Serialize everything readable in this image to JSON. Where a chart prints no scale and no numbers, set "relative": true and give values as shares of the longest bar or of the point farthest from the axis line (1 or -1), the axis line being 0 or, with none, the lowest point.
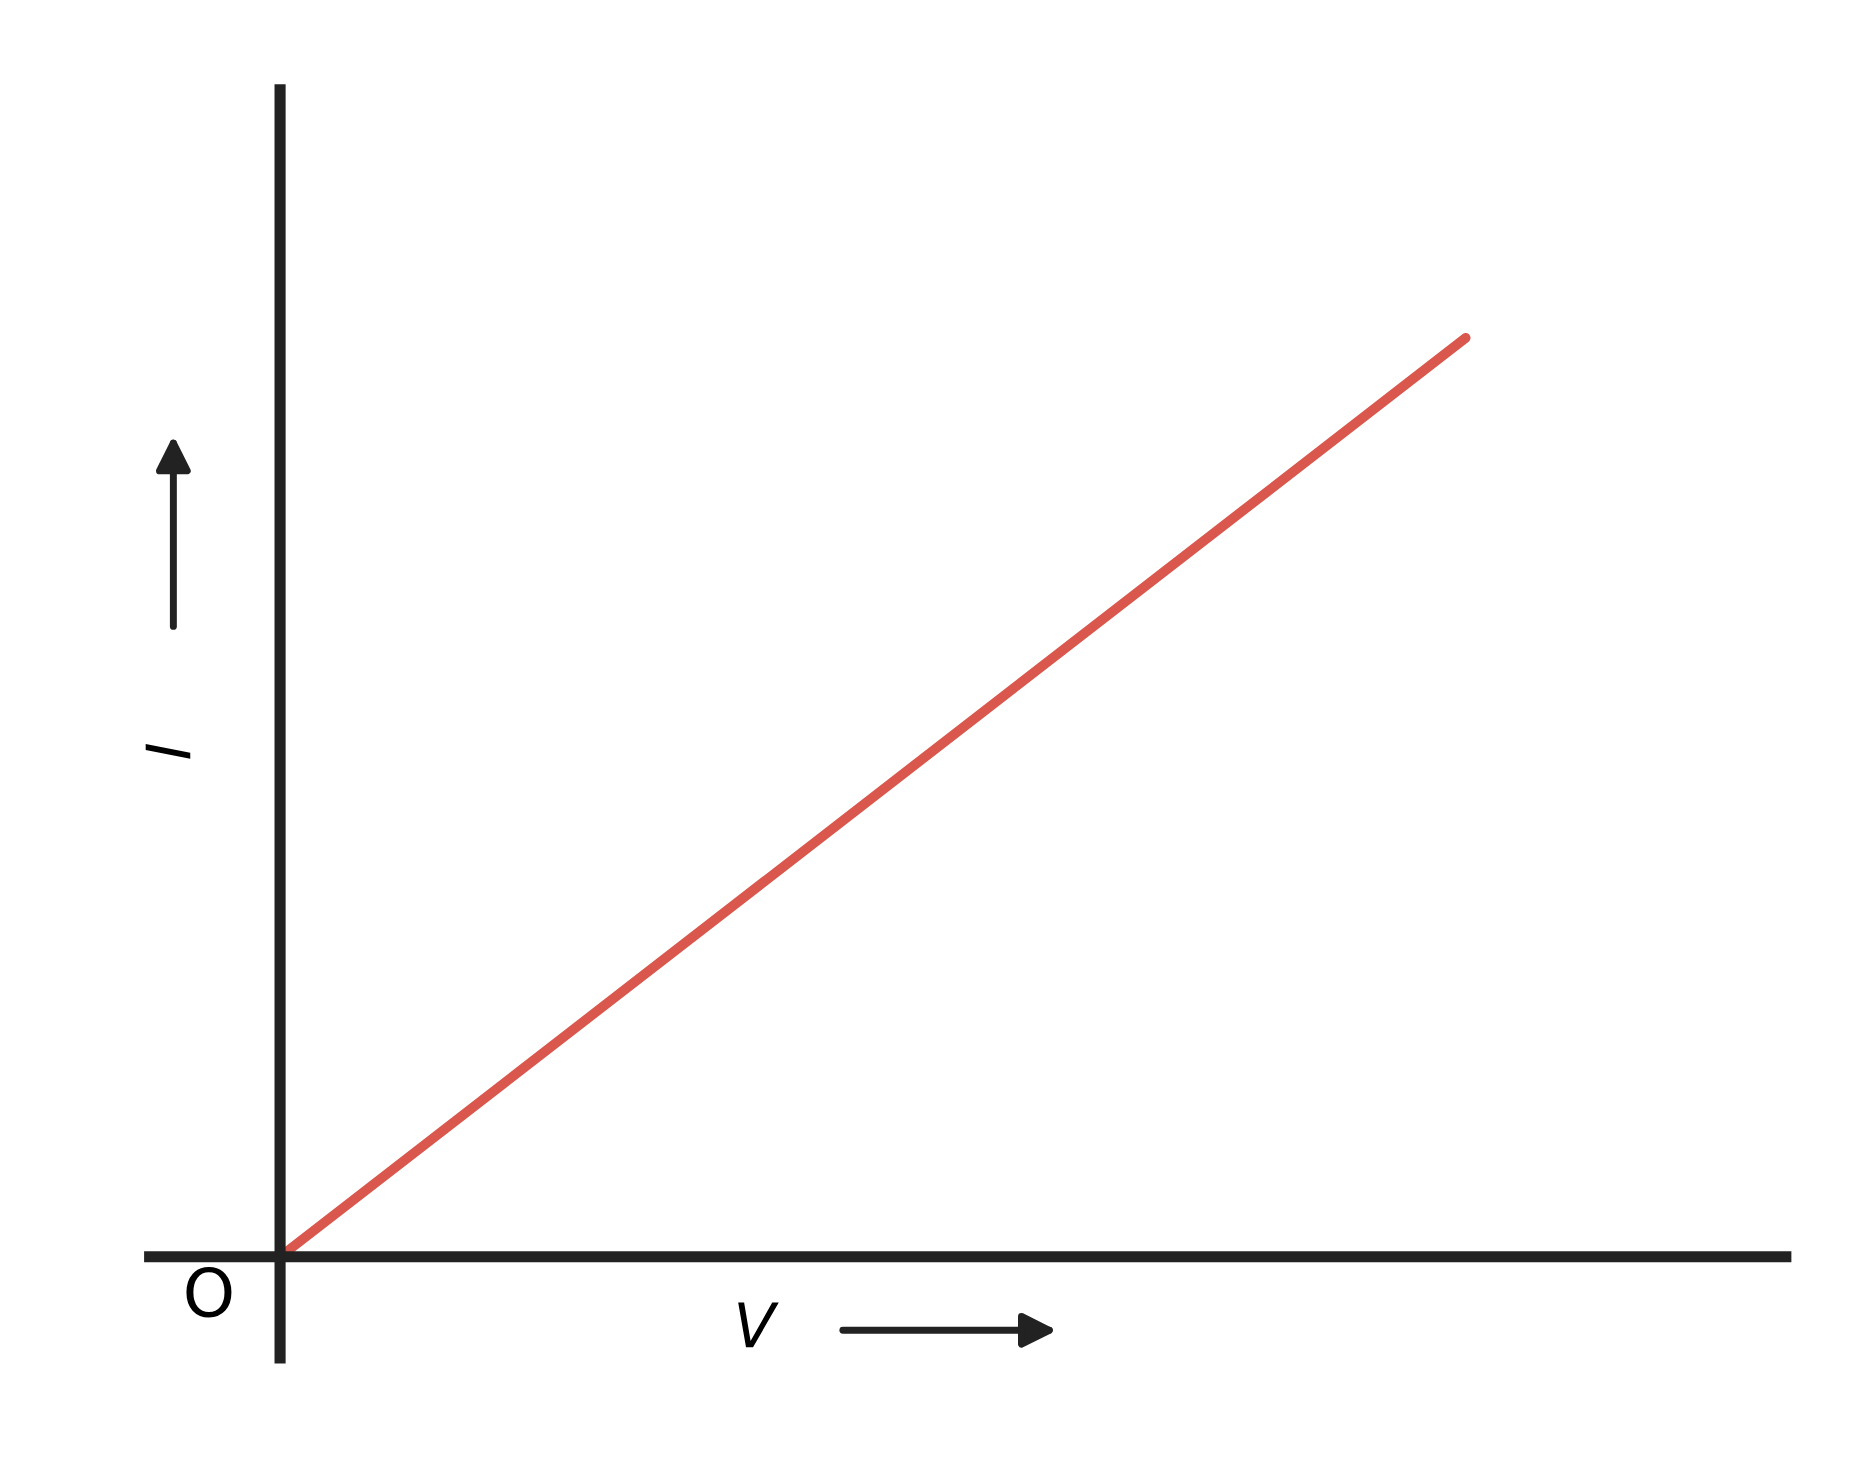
{
  "chart_data": {
    "type": "line",
    "relative": true,
    "xlabel": "V",
    "ylabel": "I",
    "categories": [
      null,
      null
    ],
    "series": [
      {
        "color": "#d9574c",
        "values": [
          0,
          1
        ]
      }
    ],
    "annotations": [
      "O"
    ],
    "legend": false,
    "marker": "none",
    "line_style": "solid"
  }
}
